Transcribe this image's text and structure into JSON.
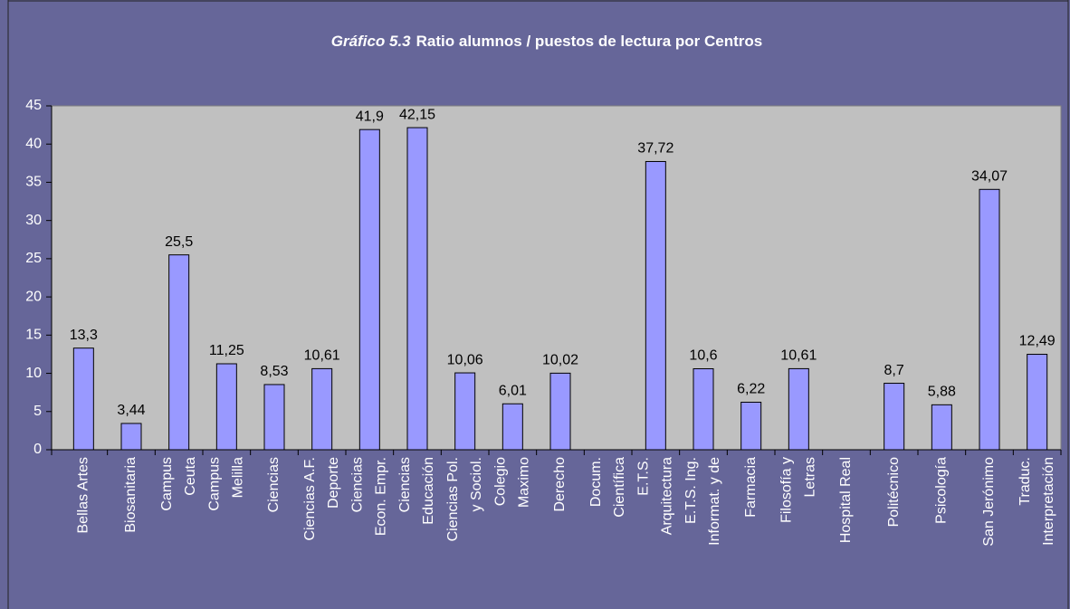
{
  "chart_data": {
    "type": "bar",
    "title_label": "Gráfico 5.3",
    "title": "Ratio alumnos / puestos de lectura por Centros",
    "categories": [
      [
        "Bellas Artes"
      ],
      [
        "Biosanitaria"
      ],
      [
        "Campus",
        "Ceuta"
      ],
      [
        "Campus",
        "Melilla"
      ],
      [
        "Ciencias"
      ],
      [
        "Ciencias A.F.",
        "Deporte"
      ],
      [
        "Ciencias",
        "Econ. Empr."
      ],
      [
        "Ciencias",
        "Educación"
      ],
      [
        "Ciencias Pol.",
        "y Sociol."
      ],
      [
        "Colegio",
        "Maximo"
      ],
      [
        "Derecho"
      ],
      [
        "Docum.",
        "Científica"
      ],
      [
        "E.T.S.",
        "Arquitectura"
      ],
      [
        "E.T.S. Ing.",
        "Informat. y de"
      ],
      [
        "Farmacia"
      ],
      [
        "Filosofía y",
        "Letras"
      ],
      [
        "Hospital Real"
      ],
      [
        "Politécnico"
      ],
      [
        "Psicología"
      ],
      [
        "San Jerónimo"
      ],
      [
        "Traduc.",
        "Interpretación"
      ]
    ],
    "values": [
      13.3,
      3.44,
      25.5,
      11.25,
      8.53,
      10.61,
      41.9,
      42.15,
      10.06,
      6.01,
      10.02,
      null,
      37.72,
      10.6,
      6.22,
      10.61,
      null,
      8.7,
      5.88,
      34.07,
      12.49
    ],
    "value_labels": [
      "13,3",
      "3,44",
      "25,5",
      "11,25",
      "8,53",
      "10,61",
      "41,9",
      "42,15",
      "10,06",
      "6,01",
      "10,02",
      null,
      "37,72",
      "10,6",
      "6,22",
      "10,61",
      null,
      "8,7",
      "5,88",
      "34,07",
      "12,49"
    ],
    "color": "#9999ff",
    "ylim": [
      0,
      45
    ],
    "yticks": [
      0,
      5,
      10,
      15,
      20,
      25,
      30,
      35,
      40,
      45
    ],
    "grid": false
  }
}
